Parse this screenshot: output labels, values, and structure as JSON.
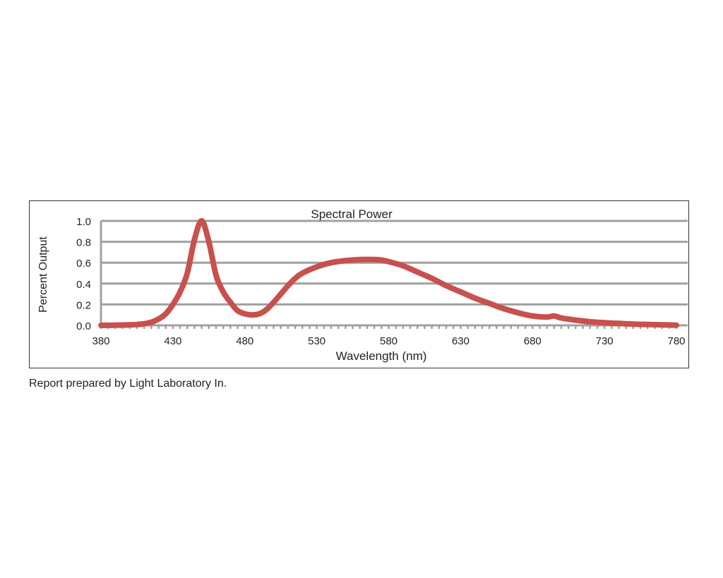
{
  "chart_data": {
    "type": "line",
    "title": "Spectral Power",
    "xlabel": "Wavelength (nm)",
    "ylabel": "Percent Output",
    "xlim": [
      380,
      780
    ],
    "ylim": [
      0,
      1.0
    ],
    "x_ticks": [
      380,
      430,
      480,
      530,
      580,
      630,
      680,
      730,
      780
    ],
    "y_ticks": [
      "0.0",
      "0.2",
      "0.4",
      "0.6",
      "0.8",
      "1.0"
    ],
    "grid": true,
    "legend": "none",
    "series_color": "#c8504d",
    "grid_color": "#a0a0a0",
    "x": [
      380,
      390,
      400,
      405,
      410,
      415,
      420,
      425,
      430,
      435,
      440,
      445,
      450,
      455,
      460,
      465,
      470,
      475,
      480,
      485,
      490,
      495,
      500,
      505,
      510,
      515,
      520,
      530,
      540,
      550,
      560,
      570,
      575,
      580,
      590,
      600,
      610,
      620,
      630,
      640,
      650,
      660,
      670,
      680,
      690,
      695,
      700,
      710,
      720,
      730,
      740,
      750,
      760,
      770,
      780
    ],
    "y": [
      0.0,
      0.002,
      0.005,
      0.008,
      0.015,
      0.03,
      0.06,
      0.11,
      0.2,
      0.32,
      0.5,
      0.82,
      1.0,
      0.8,
      0.48,
      0.32,
      0.22,
      0.14,
      0.11,
      0.1,
      0.11,
      0.15,
      0.22,
      0.3,
      0.38,
      0.45,
      0.5,
      0.56,
      0.6,
      0.62,
      0.63,
      0.63,
      0.625,
      0.61,
      0.57,
      0.51,
      0.45,
      0.38,
      0.32,
      0.26,
      0.21,
      0.16,
      0.12,
      0.09,
      0.08,
      0.09,
      0.07,
      0.05,
      0.035,
      0.025,
      0.018,
      0.012,
      0.008,
      0.005,
      0.002
    ]
  },
  "caption": "Report prepared by Light Laboratory In."
}
